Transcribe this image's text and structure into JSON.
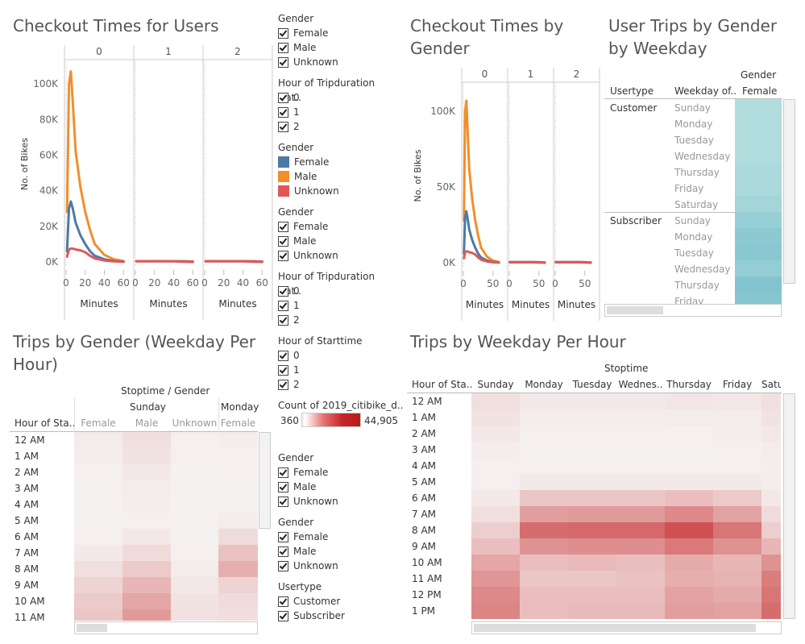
{
  "colors": {
    "female": "#4e79a7",
    "male": "#f28e2b",
    "unknown": "#e15759",
    "teal": "#7fc6c9",
    "red": "#c62828"
  },
  "checkout_users": {
    "title": "Checkout Times for Users",
    "panels": [
      "0",
      "1",
      "2"
    ],
    "ylabel": "No. of Bikes",
    "yticks": [
      "100K",
      "80K",
      "60K",
      "40K",
      "20K",
      "0K"
    ],
    "xticks": [
      "0",
      "20",
      "40",
      "60"
    ],
    "xlabel": "Minutes"
  },
  "checkout_gender": {
    "title_line1": "Checkout Times by",
    "title_line2": "Gender",
    "panels": [
      "0",
      "1",
      "2"
    ],
    "ylabel": "No. of Bikes",
    "yticks": [
      "100K",
      "50K",
      "0K"
    ],
    "xticks": [
      "0",
      "50"
    ],
    "xlabel": "Minutes"
  },
  "user_trips": {
    "title_line1": "User Trips by Gender",
    "title_line2": "by Weekday",
    "col_header_top": "Gender",
    "col_usertype": "Usertype",
    "col_weekday": "Weekday of..",
    "col_female": "Female",
    "groups": [
      {
        "name": "Customer",
        "days": [
          "Sunday",
          "Monday",
          "Tuesday",
          "Wednesday",
          "Thursday",
          "Friday",
          "Saturday"
        ]
      },
      {
        "name": "Subscriber",
        "days": [
          "Sunday",
          "Monday",
          "Tuesday",
          "Wednesday",
          "Thursday",
          "Friday"
        ]
      }
    ]
  },
  "filters_top": [
    {
      "title": "Gender",
      "options": [
        "Female",
        "Male",
        "Unknown"
      ],
      "kind": "check"
    },
    {
      "title": "Hour of Tripduration Dat..",
      "options": [
        "0",
        "1",
        "2"
      ],
      "kind": "check"
    },
    {
      "title": "Gender",
      "options": [
        "Female",
        "Male",
        "Unknown"
      ],
      "kind": "legend"
    },
    {
      "title": "Gender",
      "options": [
        "Female",
        "Male",
        "Unknown"
      ],
      "kind": "check"
    },
    {
      "title": "Hour of Tripduration Dat..",
      "options": [
        "0",
        "1",
        "2"
      ],
      "kind": "check"
    },
    {
      "title": "Hour of Starttime",
      "options": [
        "0",
        "1",
        "2"
      ],
      "kind": "check"
    }
  ],
  "color_legend": {
    "title": "Count of 2019_citibike_d..",
    "min": "360",
    "max": "44,905"
  },
  "filters_bottom": [
    {
      "title": "Gender",
      "options": [
        "Female",
        "Male",
        "Unknown"
      ]
    },
    {
      "title": "Gender",
      "options": [
        "Female",
        "Male",
        "Unknown"
      ]
    },
    {
      "title": "Usertype",
      "options": [
        "Customer",
        "Subscriber"
      ]
    }
  ],
  "trips_gender": {
    "title_line1": "Trips by Gender (Weekday Per",
    "title_line2": "Hour)",
    "header_top": "Stoptime / Gender",
    "day1": "Sunday",
    "day2": "Monday",
    "row_header": "Hour of Sta..",
    "cols": [
      "Female",
      "Male",
      "Unknown",
      "Female"
    ],
    "rows": [
      "12 AM",
      "1 AM",
      "2 AM",
      "3 AM",
      "4 AM",
      "5 AM",
      "6 AM",
      "7 AM",
      "8 AM",
      "9 AM",
      "10 AM",
      "11 AM"
    ]
  },
  "trips_weekday": {
    "title": "Trips by Weekday Per Hour",
    "header_top": "Stoptime",
    "row_header": "Hour of Sta..",
    "cols": [
      "Sunday",
      "Monday",
      "Tuesday",
      "Wednes..",
      "Thursday",
      "Friday",
      "Satu"
    ],
    "rows": [
      "12 AM",
      "1 AM",
      "2 AM",
      "3 AM",
      "4 AM",
      "5 AM",
      "6 AM",
      "7 AM",
      "8 AM",
      "9 AM",
      "10 AM",
      "11 AM",
      "12 PM",
      "1 PM"
    ]
  },
  "heat_weekday": [
    [
      0.1,
      0.05,
      0.05,
      0.05,
      0.07,
      0.06,
      0.1
    ],
    [
      0.08,
      0.03,
      0.03,
      0.03,
      0.04,
      0.04,
      0.08
    ],
    [
      0.06,
      0.02,
      0.02,
      0.02,
      0.02,
      0.03,
      0.06
    ],
    [
      0.03,
      0.01,
      0.01,
      0.01,
      0.01,
      0.02,
      0.04
    ],
    [
      0.02,
      0.02,
      0.02,
      0.02,
      0.02,
      0.02,
      0.03
    ],
    [
      0.02,
      0.05,
      0.05,
      0.05,
      0.05,
      0.05,
      0.03
    ],
    [
      0.05,
      0.22,
      0.22,
      0.22,
      0.26,
      0.2,
      0.06
    ],
    [
      0.1,
      0.42,
      0.44,
      0.44,
      0.52,
      0.4,
      0.12
    ],
    [
      0.18,
      0.66,
      0.68,
      0.68,
      0.8,
      0.62,
      0.18
    ],
    [
      0.26,
      0.48,
      0.5,
      0.5,
      0.6,
      0.48,
      0.3
    ],
    [
      0.38,
      0.26,
      0.28,
      0.26,
      0.36,
      0.3,
      0.48
    ],
    [
      0.46,
      0.22,
      0.22,
      0.24,
      0.34,
      0.32,
      0.58
    ],
    [
      0.52,
      0.26,
      0.26,
      0.26,
      0.4,
      0.36,
      0.62
    ],
    [
      0.54,
      0.26,
      0.28,
      0.28,
      0.42,
      0.4,
      0.66
    ]
  ],
  "heat_gender": [
    [
      0.04,
      0.1,
      0.02,
      0.03
    ],
    [
      0.03,
      0.08,
      0.02,
      0.02
    ],
    [
      0.02,
      0.06,
      0.01,
      0.02
    ],
    [
      0.01,
      0.04,
      0.01,
      0.01
    ],
    [
      0.01,
      0.03,
      0.01,
      0.01
    ],
    [
      0.01,
      0.02,
      0.01,
      0.04
    ],
    [
      0.02,
      0.06,
      0.01,
      0.12
    ],
    [
      0.05,
      0.12,
      0.02,
      0.24
    ],
    [
      0.1,
      0.2,
      0.04,
      0.34
    ],
    [
      0.16,
      0.3,
      0.06,
      0.16
    ],
    [
      0.2,
      0.38,
      0.08,
      0.12
    ],
    [
      0.22,
      0.44,
      0.09,
      0.1
    ]
  ],
  "teal_cells": [
    0.2,
    0.22,
    0.22,
    0.22,
    0.26,
    0.26,
    0.34,
    0.45,
    0.56,
    0.58,
    0.48,
    0.64,
    0.6
  ],
  "chart_data": [
    {
      "type": "line",
      "title": "Checkout Times for Users",
      "xlabel": "Minutes",
      "ylabel": "No. of Bikes",
      "panels": [
        "0",
        "1",
        "2"
      ],
      "ylim": [
        0,
        110000
      ],
      "series": [
        {
          "name": "Male",
          "x": [
            1,
            3,
            5,
            7,
            10,
            15,
            20,
            25,
            30,
            40,
            50,
            60
          ],
          "values": [
            28000,
            100000,
            107000,
            90000,
            62000,
            42000,
            28000,
            18000,
            10000,
            4000,
            1500,
            500
          ]
        },
        {
          "name": "Female",
          "x": [
            1,
            3,
            5,
            7,
            10,
            15,
            20,
            25,
            30,
            40,
            50,
            60
          ],
          "values": [
            6000,
            30000,
            34000,
            30000,
            22000,
            15000,
            10000,
            6000,
            3500,
            1500,
            600,
            200
          ]
        },
        {
          "name": "Unknown",
          "x": [
            1,
            3,
            5,
            7,
            10,
            15,
            20,
            25,
            30,
            40,
            50,
            60
          ],
          "values": [
            3000,
            7000,
            7500,
            7500,
            7000,
            6500,
            5500,
            3500,
            2000,
            800,
            300,
            100
          ]
        }
      ]
    },
    {
      "type": "line",
      "title": "Checkout Times by Gender",
      "xlabel": "Minutes",
      "ylabel": "No. of Bikes",
      "panels": [
        "0",
        "1",
        "2"
      ],
      "ylim": [
        0,
        115000
      ],
      "series": [
        {
          "name": "Male",
          "x": [
            1,
            3,
            5,
            7,
            10,
            15,
            20,
            25,
            30,
            40,
            50,
            60
          ],
          "values": [
            28000,
            100000,
            107000,
            90000,
            62000,
            42000,
            28000,
            18000,
            10000,
            4000,
            1500,
            500
          ]
        },
        {
          "name": "Female",
          "x": [
            1,
            3,
            5,
            7,
            10,
            15,
            20,
            25,
            30,
            40,
            50,
            60
          ],
          "values": [
            6000,
            30000,
            34000,
            30000,
            22000,
            15000,
            10000,
            6000,
            3500,
            1500,
            600,
            200
          ]
        },
        {
          "name": "Unknown",
          "x": [
            1,
            3,
            5,
            7,
            10,
            15,
            20,
            25,
            30,
            40,
            50,
            60
          ],
          "values": [
            3000,
            7000,
            7500,
            7500,
            7000,
            6500,
            5500,
            3500,
            2000,
            800,
            300,
            100
          ]
        }
      ]
    }
  ]
}
